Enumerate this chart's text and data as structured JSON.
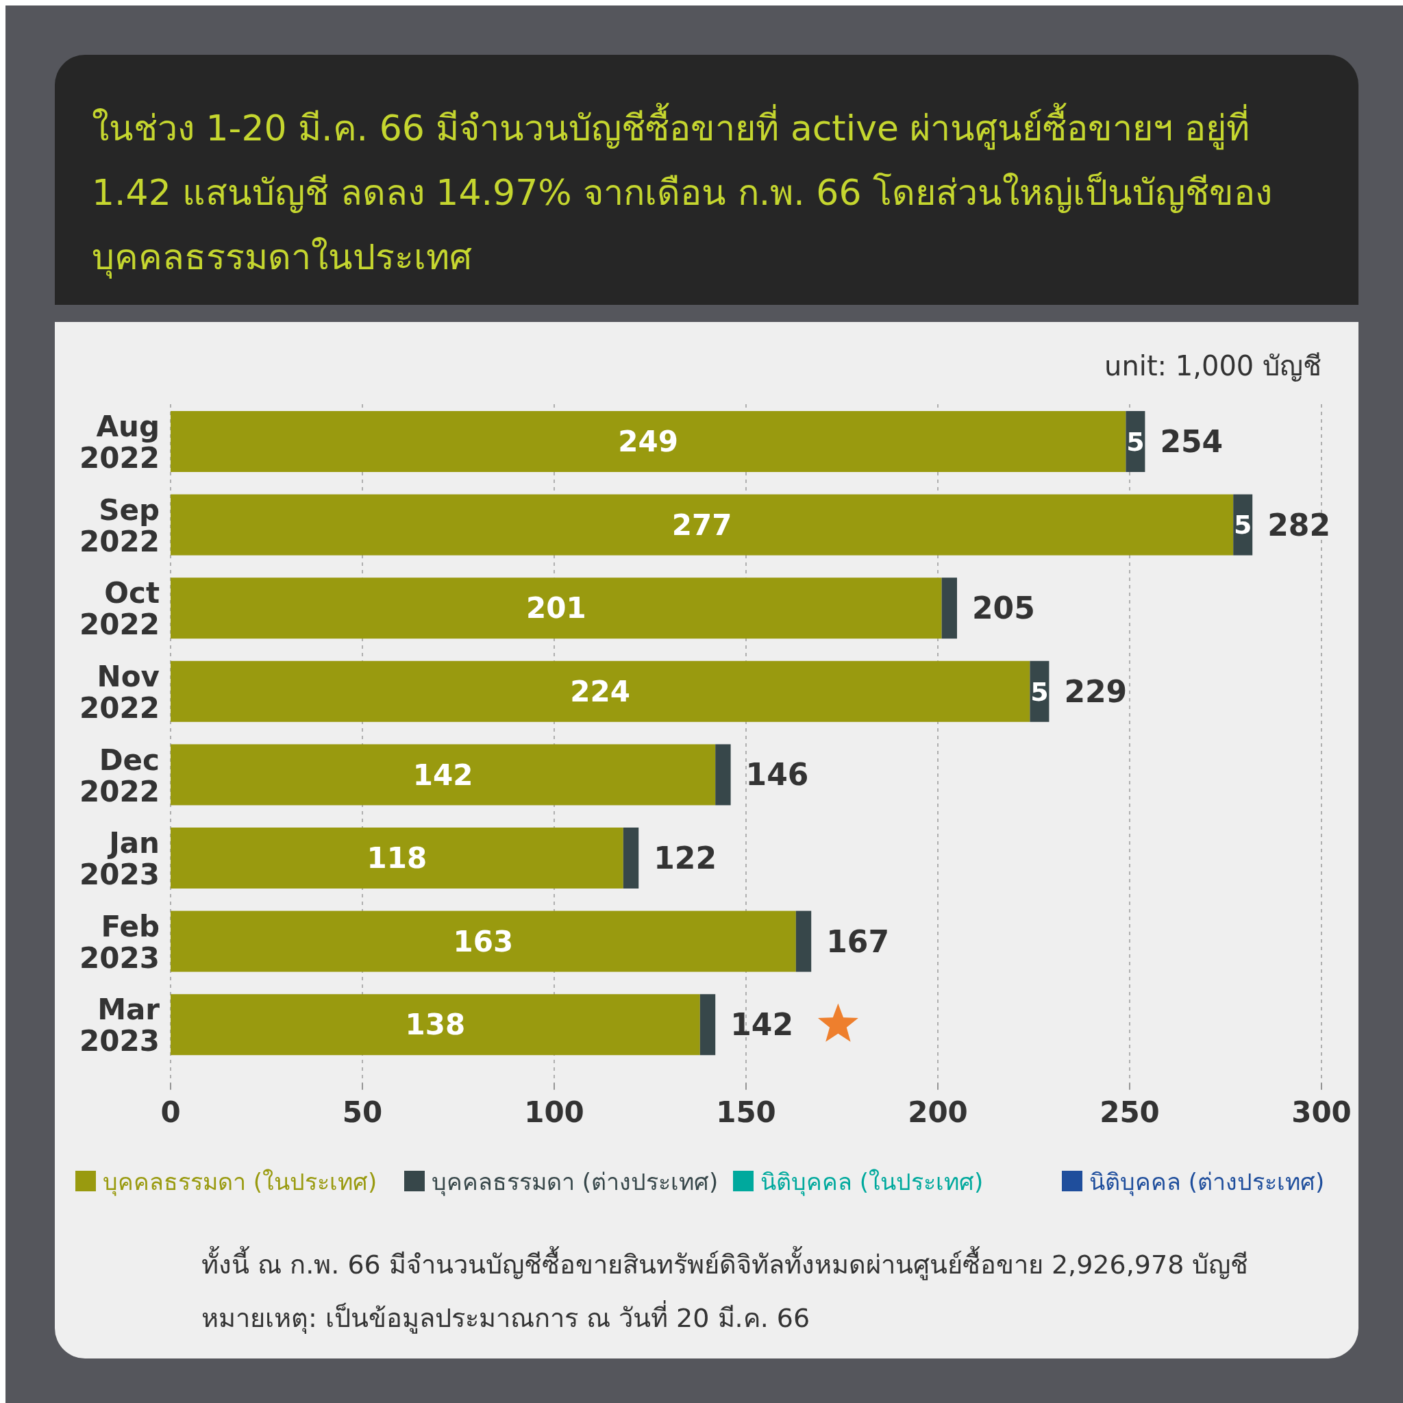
{
  "chart_data": {
    "type": "bar",
    "orientation": "horizontal",
    "stacked": true,
    "title": "ในช่วง 1-20 มี.ค. 66 มีจำนวนบัญชีซื้อขายที่ active ผ่านศูนย์ซื้อขายฯ อยู่ที่ 1.42 แสนบัญชี ลดลง 14.97% จากเดือน ก.พ. 66 โดยส่วนใหญ่เป็นบัญชีของบุคคลธรรมดาในประเทศ",
    "categories": [
      "Aug 2022",
      "Sep 2022",
      "Oct 2022",
      "Nov 2022",
      "Dec 2022",
      "Jan 2023",
      "Feb 2023",
      "Mar 2023"
    ],
    "series": [
      {
        "name": "บุคคลธรรมดา (ในประเทศ)",
        "color": "#999a0f",
        "values": [
          249,
          277,
          201,
          224,
          142,
          118,
          163,
          138
        ],
        "value_labels": [
          "249",
          "277",
          "201",
          "224",
          "142",
          "118",
          "163",
          "138"
        ]
      },
      {
        "name": "บุคคลธรรมดา (ต่างประเทศ)",
        "color": "#37474a",
        "values": [
          5,
          5,
          4,
          5,
          4,
          4,
          4,
          4
        ],
        "value_labels": [
          "5",
          "5",
          null,
          "5",
          null,
          null,
          null,
          null
        ]
      },
      {
        "name": "นิติบุคคล (ในประเทศ)",
        "color": "#00a99d",
        "values": [
          0,
          0,
          0,
          0,
          0,
          0,
          0,
          0
        ]
      },
      {
        "name": "นิติบุคคล (ต่างประเทศ)",
        "color": "#1f4e9c",
        "values": [
          0,
          0,
          0,
          0,
          0,
          0,
          0,
          0
        ]
      }
    ],
    "totals": [
      "254",
      "282",
      "205",
      "229",
      "146",
      "122",
      "167",
      "142"
    ],
    "xlim": [
      0,
      300
    ],
    "xticks": [
      0,
      50,
      100,
      150,
      200,
      250,
      300
    ],
    "grid": "x",
    "legend": "bottom",
    "annotations": [
      "unit: 1,000 บัญชี",
      "ทั้งนี้ ณ ก.พ. 66 มีจำนวนบัญชีซื้อขายสินทรัพย์ดิจิทัลทั้งหมดผ่านศูนย์ซื้อขาย 2,926,978 บัญชี",
      "หมายเหตุ: เป็นข้อมูลประมาณการ ณ วันที่ 20 มี.ค. 66"
    ]
  }
}
